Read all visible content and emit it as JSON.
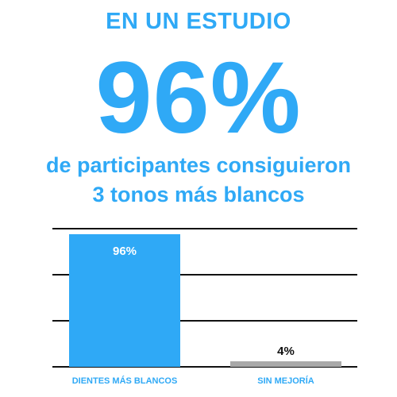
{
  "header": {
    "kicker": "EN UN ESTUDIO",
    "headline_value": "96%",
    "subtitle_line1": "de participantes consiguieron",
    "subtitle_line2": "3 tonos más blancos"
  },
  "colors": {
    "accent": "#2fa9f6",
    "secondary_bar": "#a9a9a9",
    "grid": "#111111"
  },
  "chart_data": {
    "type": "bar",
    "categories": [
      "DIENTES MÁS BLANCOS",
      "SIN MEJORÍA"
    ],
    "values": [
      96,
      4
    ],
    "data_labels": [
      "96%",
      "4%"
    ],
    "ylim": [
      0,
      100
    ],
    "grid": true,
    "title": "",
    "xlabel": "",
    "ylabel": ""
  }
}
